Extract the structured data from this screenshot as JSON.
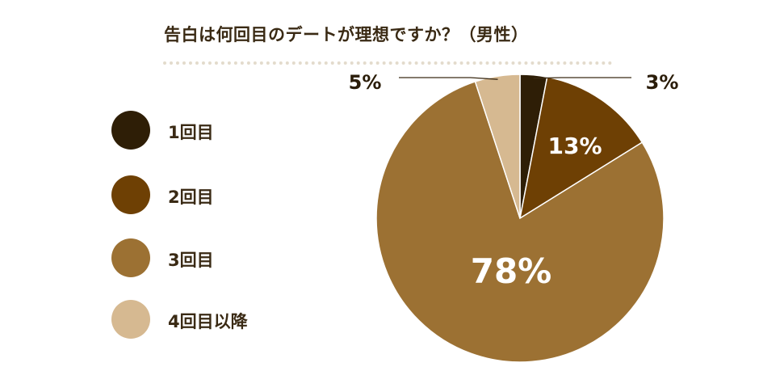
{
  "title": "告白は何回目のデートが理想ですか？（男性）",
  "chart_data": {
    "type": "pie",
    "categories": [
      "1回目",
      "2回目",
      "3回目",
      "4回目以降"
    ],
    "values": [
      3,
      13,
      78,
      5
    ],
    "value_labels": [
      "3%",
      "13%",
      "78%",
      "5%"
    ],
    "colors": [
      "#2e1e06",
      "#6e4004",
      "#9c7133",
      "#d6b991"
    ],
    "legend_position": "left"
  }
}
